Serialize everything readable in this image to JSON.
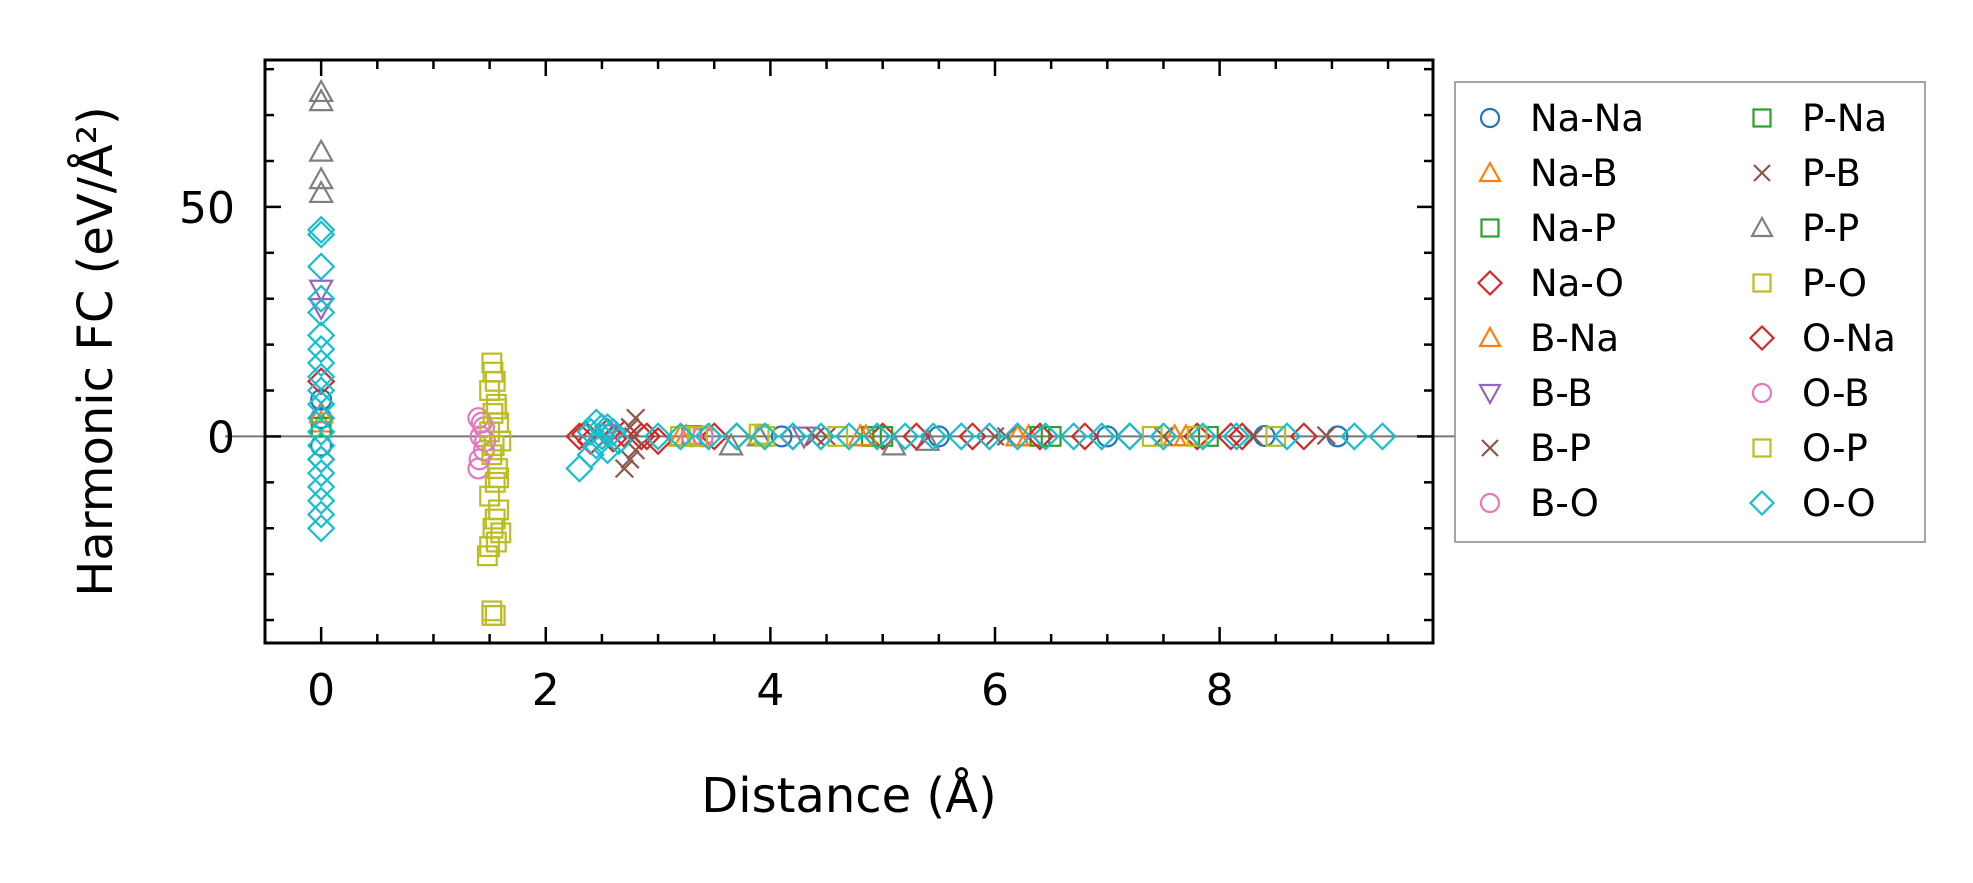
{
  "chart_data": {
    "type": "scatter",
    "title": "",
    "xlabel": "Distance (Å)",
    "ylabel": "Harmonic FC (eV/Å²)",
    "xlim": [
      -0.5,
      9.9
    ],
    "ylim": [
      -45,
      82
    ],
    "xticks": [
      0,
      2,
      4,
      6,
      8
    ],
    "xtick_labels": [
      "0",
      "2",
      "4",
      "6",
      "8"
    ],
    "yticks": [
      0,
      50
    ],
    "ytick_labels": [
      "0",
      "50"
    ],
    "legend_position": "outside-right",
    "legend_columns": 2,
    "series": [
      {
        "name": "Na-Na",
        "marker": "circle",
        "color": "#1f77b4",
        "points": [
          [
            0,
            8
          ],
          [
            0,
            4
          ],
          [
            0,
            -2
          ],
          [
            4.1,
            0
          ],
          [
            5.5,
            0
          ],
          [
            7.0,
            0
          ],
          [
            8.4,
            0.1
          ],
          [
            9.05,
            0
          ]
        ]
      },
      {
        "name": "Na-B",
        "marker": "triangle-up",
        "color": "#ff7f0e",
        "points": [
          [
            0,
            3
          ],
          [
            3.2,
            0
          ],
          [
            4.8,
            0
          ],
          [
            6.3,
            0
          ],
          [
            7.7,
            0
          ]
        ]
      },
      {
        "name": "Na-P",
        "marker": "square",
        "color": "#2ca02c",
        "points": [
          [
            0,
            2
          ],
          [
            3.3,
            0.2
          ],
          [
            4.9,
            0
          ],
          [
            6.4,
            0
          ],
          [
            7.9,
            0
          ]
        ]
      },
      {
        "name": "Na-O",
        "marker": "diamond",
        "color": "#d62728",
        "points": [
          [
            0,
            12
          ],
          [
            0,
            -5
          ],
          [
            2.3,
            0
          ],
          [
            2.4,
            -1
          ],
          [
            2.55,
            1
          ],
          [
            2.7,
            0.5
          ],
          [
            2.9,
            0
          ],
          [
            3.0,
            -1
          ],
          [
            3.5,
            0
          ],
          [
            4.2,
            0
          ],
          [
            5.0,
            0
          ],
          [
            5.8,
            0
          ],
          [
            6.4,
            0
          ],
          [
            7.2,
            0
          ],
          [
            7.8,
            0
          ],
          [
            8.2,
            0
          ],
          [
            8.75,
            0
          ]
        ]
      },
      {
        "name": "B-Na",
        "marker": "triangle-up",
        "color": "#ff7f0e",
        "points": [
          [
            0,
            5
          ],
          [
            3.25,
            0
          ],
          [
            4.85,
            0
          ],
          [
            6.2,
            0
          ],
          [
            7.6,
            0
          ]
        ]
      },
      {
        "name": "B-B",
        "marker": "triangle-down",
        "color": "#9467bd",
        "points": [
          [
            0,
            32
          ],
          [
            0,
            28
          ],
          [
            2.55,
            0.5
          ],
          [
            4.3,
            0
          ]
        ]
      },
      {
        "name": "B-P",
        "marker": "x",
        "color": "#8c564b",
        "points": [
          [
            2.7,
            -7
          ],
          [
            2.75,
            -5
          ],
          [
            2.8,
            -3
          ],
          [
            2.75,
            2
          ],
          [
            2.8,
            4
          ],
          [
            4.4,
            0
          ],
          [
            6.0,
            0
          ],
          [
            7.5,
            0
          ]
        ]
      },
      {
        "name": "B-O",
        "marker": "circle",
        "color": "#e377c2",
        "points": [
          [
            1.4,
            4
          ],
          [
            1.42,
            0
          ],
          [
            1.45,
            -3
          ],
          [
            1.4,
            -7
          ],
          [
            1.45,
            2
          ],
          [
            3.3,
            0
          ]
        ]
      },
      {
        "name": "P-Na",
        "marker": "square",
        "color": "#2ca02c",
        "points": [
          [
            3.35,
            0
          ],
          [
            5.0,
            0
          ],
          [
            6.5,
            0
          ]
        ]
      },
      {
        "name": "P-B",
        "marker": "x",
        "color": "#8c564b",
        "points": [
          [
            2.78,
            0
          ],
          [
            4.5,
            0
          ],
          [
            6.1,
            0
          ],
          [
            8.3,
            0
          ],
          [
            8.95,
            0.2
          ]
        ]
      },
      {
        "name": "P-P",
        "marker": "triangle-up",
        "color": "#7f7f7f",
        "points": [
          [
            0,
            75
          ],
          [
            0,
            73
          ],
          [
            0,
            62
          ],
          [
            0,
            56
          ],
          [
            0,
            53
          ],
          [
            3.65,
            -2
          ],
          [
            3.9,
            0
          ],
          [
            5.1,
            -2
          ],
          [
            5.4,
            -1
          ]
        ]
      },
      {
        "name": "P-O",
        "marker": "square",
        "color": "#bcbd22",
        "points": [
          [
            1.52,
            16
          ],
          [
            1.55,
            12
          ],
          [
            1.5,
            10
          ],
          [
            1.56,
            7
          ],
          [
            1.53,
            5
          ],
          [
            1.58,
            3
          ],
          [
            1.5,
            1
          ],
          [
            1.6,
            -1
          ],
          [
            1.52,
            -4
          ],
          [
            1.57,
            -7
          ],
          [
            1.55,
            -10
          ],
          [
            1.5,
            -13
          ],
          [
            1.58,
            -16
          ],
          [
            1.55,
            -18
          ],
          [
            1.6,
            -21
          ],
          [
            1.5,
            -24
          ],
          [
            1.48,
            -26
          ],
          [
            1.52,
            -38
          ],
          [
            1.55,
            -39
          ],
          [
            3.2,
            0
          ],
          [
            3.4,
            0
          ],
          [
            3.9,
            0.5
          ],
          [
            4.6,
            0
          ],
          [
            7.4,
            0
          ],
          [
            7.8,
            0
          ],
          [
            8.5,
            0
          ]
        ]
      },
      {
        "name": "O-Na",
        "marker": "diamond",
        "color": "#d62728",
        "points": [
          [
            2.35,
            0.5
          ],
          [
            2.6,
            -0.5
          ],
          [
            2.85,
            0
          ],
          [
            3.7,
            0
          ],
          [
            5.3,
            0
          ],
          [
            6.8,
            0
          ],
          [
            8.1,
            0
          ]
        ]
      },
      {
        "name": "O-B",
        "marker": "circle",
        "color": "#e377c2",
        "points": [
          [
            1.43,
            3
          ],
          [
            1.46,
            -1
          ],
          [
            1.41,
            -5
          ],
          [
            3.4,
            0
          ]
        ]
      },
      {
        "name": "O-P",
        "marker": "square",
        "color": "#bcbd22",
        "points": [
          [
            1.53,
            14
          ],
          [
            1.56,
            6
          ],
          [
            1.54,
            -2
          ],
          [
            1.58,
            -9
          ],
          [
            1.53,
            -20
          ],
          [
            1.56,
            -23
          ],
          [
            1.52,
            -39
          ],
          [
            3.35,
            0
          ],
          [
            3.95,
            0
          ]
        ]
      },
      {
        "name": "O-O",
        "marker": "diamond",
        "color": "#17becf",
        "points": [
          [
            0,
            45
          ],
          [
            0,
            44
          ],
          [
            0,
            37
          ],
          [
            0,
            30
          ],
          [
            0,
            27
          ],
          [
            0,
            22
          ],
          [
            0,
            19
          ],
          [
            0,
            16
          ],
          [
            0,
            13
          ],
          [
            0,
            10
          ],
          [
            0,
            7
          ],
          [
            0,
            4
          ],
          [
            0,
            1
          ],
          [
            0,
            -2
          ],
          [
            0,
            -5
          ],
          [
            0,
            -8
          ],
          [
            0,
            -11
          ],
          [
            0,
            -14
          ],
          [
            0,
            -17
          ],
          [
            0,
            -20
          ],
          [
            2.3,
            -7
          ],
          [
            2.4,
            -4
          ],
          [
            2.45,
            -2
          ],
          [
            2.5,
            0
          ],
          [
            2.55,
            2
          ],
          [
            2.6,
            1
          ],
          [
            2.45,
            3
          ],
          [
            2.55,
            -3
          ],
          [
            2.4,
            1
          ],
          [
            2.65,
            -1
          ],
          [
            2.5,
            2
          ],
          [
            3.0,
            0
          ],
          [
            3.2,
            0
          ],
          [
            3.45,
            0
          ],
          [
            3.7,
            0
          ],
          [
            3.95,
            0
          ],
          [
            4.2,
            0
          ],
          [
            4.45,
            0
          ],
          [
            4.7,
            0
          ],
          [
            4.95,
            0
          ],
          [
            5.2,
            0
          ],
          [
            5.45,
            0
          ],
          [
            5.7,
            0
          ],
          [
            5.95,
            0
          ],
          [
            6.2,
            0
          ],
          [
            6.45,
            0
          ],
          [
            6.7,
            0
          ],
          [
            6.95,
            0
          ],
          [
            7.2,
            0
          ],
          [
            7.5,
            0
          ],
          [
            7.85,
            0
          ],
          [
            8.15,
            0
          ],
          [
            8.6,
            0
          ],
          [
            9.2,
            0
          ],
          [
            9.45,
            0
          ]
        ]
      }
    ]
  }
}
